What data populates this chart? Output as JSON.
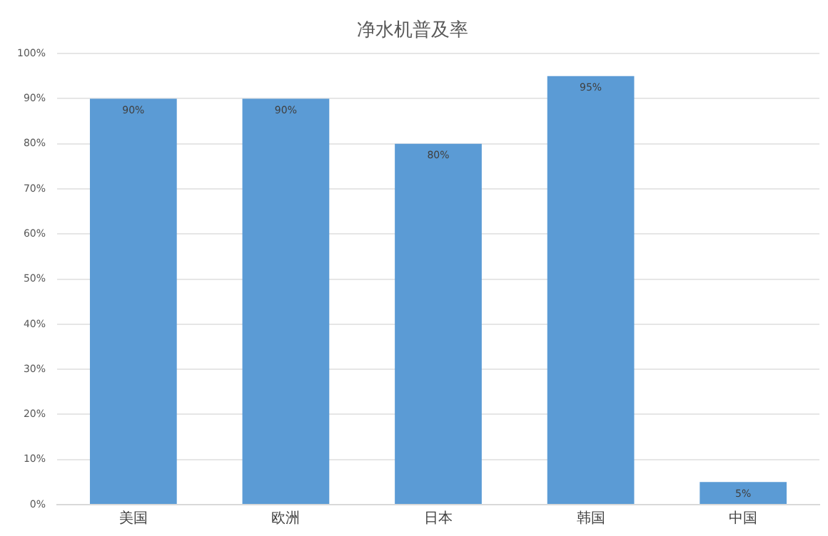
{
  "chart_data": {
    "type": "bar",
    "title": "净水机普及率",
    "categories": [
      "美国",
      "欧洲",
      "日本",
      "韩国",
      "中国"
    ],
    "values": [
      90,
      90,
      80,
      95,
      5
    ],
    "value_labels": [
      "90%",
      "90%",
      "80%",
      "95%",
      "5%"
    ],
    "color": "#5b9bd5",
    "ylim": [
      0,
      100
    ],
    "yticks": [
      {
        "value": 0,
        "label": "0%"
      },
      {
        "value": 10,
        "label": "10%"
      },
      {
        "value": 20,
        "label": "20%"
      },
      {
        "value": 30,
        "label": "30%"
      },
      {
        "value": 40,
        "label": "40%"
      },
      {
        "value": 50,
        "label": "50%"
      },
      {
        "value": 60,
        "label": "60%"
      },
      {
        "value": 70,
        "label": "70%"
      },
      {
        "value": 80,
        "label": "80%"
      },
      {
        "value": 90,
        "label": "90%"
      },
      {
        "value": 100,
        "label": "100%"
      }
    ],
    "grid": "y"
  }
}
